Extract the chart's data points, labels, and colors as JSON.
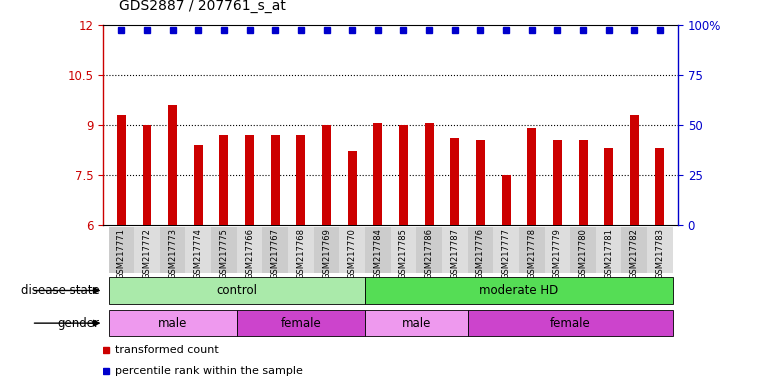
{
  "title": "GDS2887 / 207761_s_at",
  "samples": [
    "GSM217771",
    "GSM217772",
    "GSM217773",
    "GSM217774",
    "GSM217775",
    "GSM217766",
    "GSM217767",
    "GSM217768",
    "GSM217769",
    "GSM217770",
    "GSM217784",
    "GSM217785",
    "GSM217786",
    "GSM217787",
    "GSM217776",
    "GSM217777",
    "GSM217778",
    "GSM217779",
    "GSM217780",
    "GSM217781",
    "GSM217782",
    "GSM217783"
  ],
  "bar_values": [
    9.3,
    9.0,
    9.6,
    8.4,
    8.7,
    8.7,
    8.7,
    8.7,
    9.0,
    8.2,
    9.05,
    9.0,
    9.05,
    8.6,
    8.55,
    7.5,
    8.9,
    8.55,
    8.55,
    8.3,
    9.3,
    8.3
  ],
  "bar_color": "#CC0000",
  "percentile_color": "#0000CC",
  "ylim_left": [
    6,
    12
  ],
  "yticks_left": [
    6,
    7.5,
    9,
    10.5,
    12
  ],
  "ytick_labels_left": [
    "6",
    "7.5",
    "9",
    "10.5",
    "12"
  ],
  "yticks_right": [
    0,
    25,
    50,
    75,
    100
  ],
  "ytick_labels_right": [
    "0",
    "25",
    "50",
    "75",
    "100%"
  ],
  "dotted_lines": [
    7.5,
    9.0,
    10.5
  ],
  "disease_state_groups": [
    {
      "label": "control",
      "start": 0,
      "end": 10,
      "color": "#AAEAAA"
    },
    {
      "label": "moderate HD",
      "start": 10,
      "end": 22,
      "color": "#55DD55"
    }
  ],
  "gender_groups": [
    {
      "label": "male",
      "start": 0,
      "end": 5,
      "color": "#EE99EE"
    },
    {
      "label": "female",
      "start": 5,
      "end": 10,
      "color": "#CC44CC"
    },
    {
      "label": "male",
      "start": 10,
      "end": 14,
      "color": "#EE99EE"
    },
    {
      "label": "female",
      "start": 14,
      "end": 22,
      "color": "#CC44CC"
    }
  ],
  "left_labels": [
    "disease state",
    "gender"
  ],
  "legend_items": [
    {
      "label": "transformed count",
      "color": "#CC0000"
    },
    {
      "label": "percentile rank within the sample",
      "color": "#0000CC"
    }
  ]
}
